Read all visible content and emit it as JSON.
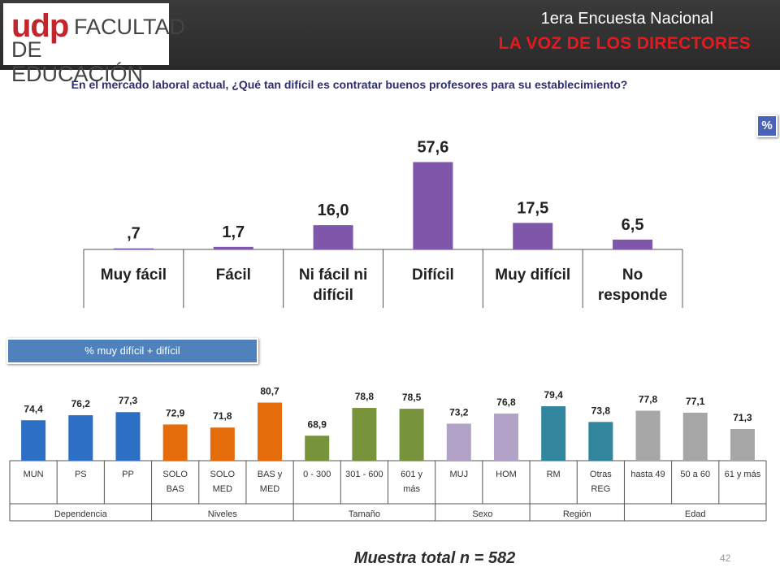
{
  "header": {
    "logo_brand": "udp",
    "logo_line1": "FACULTAD",
    "logo_line2": "DE EDUCACIÓN",
    "title": "1era Encuesta Nacional",
    "subtitle": "LA VOZ DE LOS DIRECTORES"
  },
  "question": "En el mercado laboral actual, ¿Qué tan difícil es contratar buenos profesores para su establecimiento?",
  "pct_badge": "%",
  "legend_label": "% muy difícil + difícil",
  "footer": "Muestra total n = 582",
  "page_number": "42",
  "colors": {
    "main_bar": "#7e57ab",
    "Dependencia": "#2e6fc6",
    "Niveles": "#e46c0a",
    "Tamaño": "#77933c",
    "Sexo": "#b3a2c7",
    "Región": "#31859c",
    "Edad": "#a6a6a6"
  },
  "chart_data": [
    {
      "type": "bar",
      "categories": [
        "Muy fácil",
        "Fácil",
        "Ni fácil ni difícil",
        "Difícil",
        "Muy difícil",
        "No responde"
      ],
      "category_lines": [
        [
          "Muy fácil"
        ],
        [
          "Fácil"
        ],
        [
          "Ni fácil ni",
          "difícil"
        ],
        [
          "Difícil"
        ],
        [
          "Muy difícil"
        ],
        [
          "No",
          "responde"
        ]
      ],
      "values": [
        0.7,
        1.7,
        16.0,
        57.6,
        17.5,
        6.5
      ],
      "labels": [
        ",7",
        "1,7",
        "16,0",
        "57,6",
        "17,5",
        "6,5"
      ],
      "ylim": [
        0,
        60
      ]
    },
    {
      "type": "bar",
      "title": "% muy difícil + difícil",
      "categories": [
        "MUN",
        "PS",
        "PP",
        "SOLO BAS",
        "SOLO MED",
        "BAS y MED",
        "0 - 300",
        "301 - 600",
        "601 y más",
        "MUJ",
        "HOM",
        "RM",
        "Otras REG",
        "hasta 49",
        "50 a 60",
        "61 y más"
      ],
      "category_lines": [
        [
          "MUN"
        ],
        [
          "PS"
        ],
        [
          "PP"
        ],
        [
          "SOLO",
          "BAS"
        ],
        [
          "SOLO",
          "MED"
        ],
        [
          "BAS y",
          "MED"
        ],
        [
          "0 - 300"
        ],
        [
          "301 - 600"
        ],
        [
          "601 y",
          "más"
        ],
        [
          "MUJ"
        ],
        [
          "HOM"
        ],
        [
          "RM"
        ],
        [
          "Otras",
          "REG"
        ],
        [
          "hasta 49"
        ],
        [
          "50 a 60"
        ],
        [
          "61 y más"
        ]
      ],
      "values": [
        74.4,
        76.2,
        77.3,
        72.9,
        71.8,
        80.7,
        68.9,
        78.8,
        78.5,
        73.2,
        76.8,
        79.4,
        73.8,
        77.8,
        77.1,
        71.3
      ],
      "labels": [
        "74,4",
        "76,2",
        "77,3",
        "72,9",
        "71,8",
        "80,7",
        "68,9",
        "78,8",
        "78,5",
        "73,2",
        "76,8",
        "79,4",
        "73,8",
        "77,8",
        "77,1",
        "71,3"
      ],
      "groups": [
        {
          "name": "Dependencia",
          "count": 3
        },
        {
          "name": "Niveles",
          "count": 3
        },
        {
          "name": "Tamaño",
          "count": 3
        },
        {
          "name": "Sexo",
          "count": 2
        },
        {
          "name": "Región",
          "count": 2
        },
        {
          "name": "Edad",
          "count": 3
        }
      ]
    }
  ]
}
